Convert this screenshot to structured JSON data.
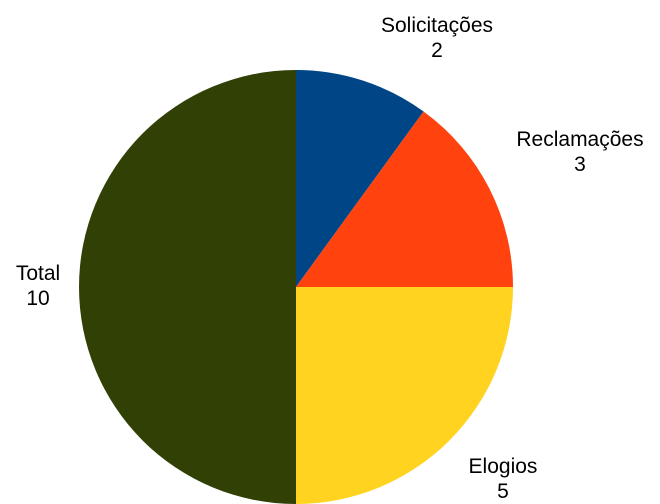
{
  "chart_data": {
    "type": "pie",
    "title": "",
    "start_angle_deg": 0,
    "direction": "clockwise",
    "slices": [
      {
        "label": "Solicitações",
        "value": 2,
        "color": "#004586"
      },
      {
        "label": "Reclamações",
        "value": 3,
        "color": "#ff420e"
      },
      {
        "label": "Elogios",
        "value": 5,
        "color": "#ffd320"
      },
      {
        "label": "Total",
        "value": 10,
        "color": "#314004"
      }
    ],
    "data_labels": "category-and-value",
    "legend": "none"
  }
}
